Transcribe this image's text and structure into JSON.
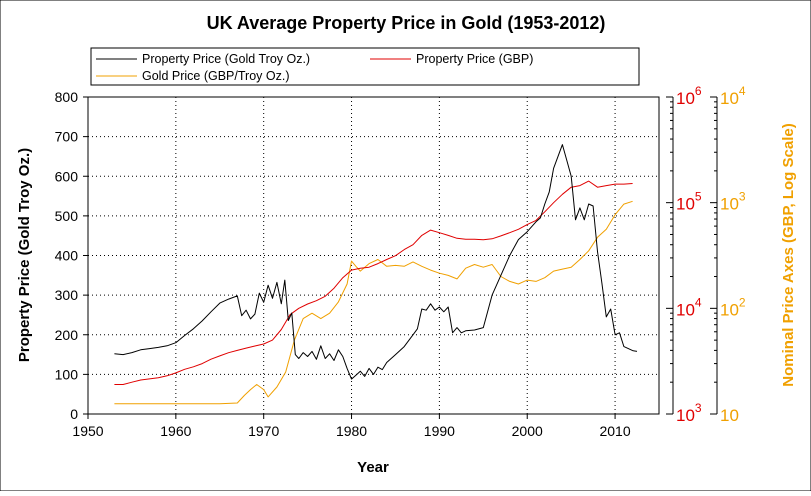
{
  "chart_data": {
    "type": "line",
    "title": "UK Average Property Price in Gold (1953-2012)",
    "xlabel": "Year",
    "ylabel": "Property Price (Gold Troy Oz.)",
    "y2label": "Nominal Price Axes (GBP, Log Scale)",
    "xlim": [
      1950,
      2015
    ],
    "ylim": [
      0,
      800
    ],
    "x_ticks": [
      "1950",
      "1960",
      "1970",
      "1980",
      "1990",
      "2000",
      "2010"
    ],
    "y_ticks": [
      "0",
      "100",
      "200",
      "300",
      "400",
      "500",
      "600",
      "700",
      "800"
    ],
    "grid": true,
    "legend_position": "top",
    "colors": {
      "gold_oz": "#000000",
      "gbp": "#e00000",
      "gold_price": "#f0a000"
    },
    "gbp_axis": {
      "scale": "log",
      "range": [
        1000,
        1000000
      ],
      "ticks": [
        {
          "value": 1000,
          "base": "10",
          "exp": "3"
        },
        {
          "value": 10000,
          "base": "10",
          "exp": "4"
        },
        {
          "value": 100000,
          "base": "10",
          "exp": "5"
        },
        {
          "value": 1000000,
          "base": "10",
          "exp": "6"
        }
      ]
    },
    "gold_axis": {
      "scale": "log",
      "range": [
        10,
        10000
      ],
      "ticks": [
        {
          "value": 10,
          "base": "10",
          "exp": ""
        },
        {
          "value": 100,
          "base": "10",
          "exp": "2"
        },
        {
          "value": 1000,
          "base": "10",
          "exp": "3"
        },
        {
          "value": 10000,
          "base": "10",
          "exp": "4"
        }
      ]
    },
    "series": [
      {
        "name": "Property Price (Gold Troy Oz.)",
        "key": "gold_oz",
        "axis": "left",
        "x": [
          1953,
          1954,
          1955,
          1956,
          1957,
          1958,
          1959,
          1960,
          1961,
          1962,
          1963,
          1964,
          1965,
          1966,
          1967,
          1967.5,
          1968,
          1968.5,
          1969,
          1969.5,
          1970,
          1970.5,
          1971,
          1971.5,
          1972,
          1972.4,
          1972.8,
          1973.2,
          1973.6,
          1974,
          1974.5,
          1975,
          1975.5,
          1976,
          1976.5,
          1977,
          1977.5,
          1978,
          1978.5,
          1979,
          1979.5,
          1980,
          1980.5,
          1981,
          1981.5,
          1982,
          1982.5,
          1983,
          1983.5,
          1984,
          1985,
          1986,
          1987,
          1987.5,
          1988,
          1988.5,
          1989,
          1989.5,
          1990,
          1990.5,
          1991,
          1991.5,
          1992,
          1992.5,
          1993,
          1994,
          1995,
          1996,
          1997,
          1998,
          1999,
          2000,
          2001,
          2001.5,
          2002,
          2002.5,
          2003,
          2003.5,
          2004,
          2004.5,
          2005,
          2005.5,
          2006,
          2006.5,
          2007,
          2007.5,
          2008,
          2008.5,
          2009,
          2009.5,
          2010,
          2010.5,
          2011,
          2011.5,
          2012,
          2012.5
        ],
        "values": [
          152,
          150,
          155,
          162,
          165,
          168,
          172,
          180,
          198,
          215,
          235,
          258,
          280,
          290,
          298,
          248,
          262,
          240,
          252,
          305,
          282,
          325,
          292,
          332,
          278,
          338,
          236,
          255,
          150,
          140,
          155,
          145,
          158,
          138,
          172,
          140,
          152,
          135,
          162,
          145,
          115,
          88,
          98,
          108,
          95,
          115,
          100,
          118,
          112,
          130,
          150,
          170,
          200,
          215,
          265,
          262,
          278,
          262,
          270,
          258,
          270,
          205,
          218,
          205,
          210,
          212,
          218,
          300,
          350,
          400,
          440,
          460,
          485,
          495,
          530,
          560,
          620,
          650,
          680,
          640,
          600,
          490,
          520,
          490,
          530,
          525,
          410,
          330,
          245,
          265,
          200,
          205,
          170,
          165,
          160,
          158
        ]
      },
      {
        "name": "Property Price (GBP)",
        "key": "gbp",
        "axis": "right",
        "x": [
          1953,
          1954,
          1955,
          1956,
          1957,
          1958,
          1959,
          1960,
          1961,
          1962,
          1963,
          1964,
          1965,
          1966,
          1967,
          1968,
          1969,
          1970,
          1971,
          1972,
          1973,
          1974,
          1975,
          1976,
          1977,
          1978,
          1979,
          1980,
          1981,
          1982,
          1983,
          1984,
          1985,
          1986,
          1987,
          1988,
          1989,
          1990,
          1991,
          1992,
          1993,
          1994,
          1995,
          1996,
          1997,
          1998,
          1999,
          2000,
          2001,
          2002,
          2003,
          2004,
          2005,
          2006,
          2007,
          2008,
          2009,
          2010,
          2011,
          2012
        ],
        "values": [
          1900,
          1900,
          2000,
          2100,
          2150,
          2200,
          2300,
          2450,
          2650,
          2800,
          3000,
          3300,
          3550,
          3800,
          4000,
          4200,
          4400,
          4600,
          5000,
          6300,
          8700,
          10000,
          11000,
          11800,
          13000,
          15500,
          19500,
          23000,
          24000,
          24500,
          26500,
          29000,
          31500,
          36000,
          40000,
          49000,
          55000,
          52000,
          49000,
          46000,
          45000,
          45000,
          44500,
          45500,
          48500,
          52000,
          56000,
          62000,
          68000,
          82000,
          100000,
          120000,
          140000,
          145000,
          160000,
          140000,
          145000,
          150000,
          150000,
          152000
        ]
      },
      {
        "name": "Gold Price (GBP/Troy Oz.)",
        "key": "gold_price",
        "axis": "right2",
        "x": [
          1953,
          1955,
          1960,
          1965,
          1967,
          1967.8,
          1968.5,
          1969.2,
          1970,
          1970.5,
          1971.5,
          1972.5,
          1973.5,
          1974.5,
          1975.5,
          1976.5,
          1977.5,
          1978.5,
          1979.5,
          1980,
          1980.5,
          1981,
          1982,
          1983,
          1984,
          1985,
          1986,
          1987,
          1988,
          1989,
          1990,
          1991,
          1992,
          1993,
          1994,
          1995,
          1996,
          1997,
          1998,
          1999,
          2000,
          2001,
          2002,
          2003,
          2004,
          2005,
          2006,
          2007,
          2008,
          2009,
          2010,
          2011,
          2012
        ],
        "values": [
          12.5,
          12.5,
          12.5,
          12.5,
          12.7,
          15,
          17,
          19,
          17,
          14.5,
          18,
          25,
          50,
          80,
          90,
          80,
          90,
          115,
          170,
          280,
          250,
          225,
          265,
          290,
          250,
          255,
          250,
          275,
          250,
          230,
          215,
          205,
          190,
          240,
          260,
          245,
          260,
          200,
          180,
          170,
          185,
          180,
          195,
          225,
          235,
          245,
          290,
          350,
          470,
          560,
          770,
          970,
          1030
        ]
      }
    ]
  }
}
